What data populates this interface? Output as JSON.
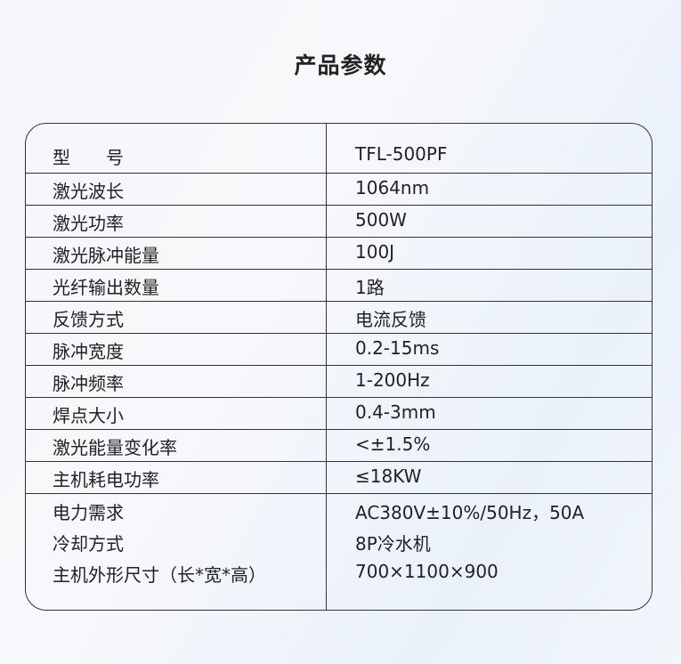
{
  "title": "产品参数",
  "rows": [
    {
      "label": "型　　号",
      "value": "TFL-500PF"
    },
    {
      "label": "激光波长",
      "value": "1064nm"
    },
    {
      "label": "激光功率",
      "value": "500W"
    },
    {
      "label": "激光脉冲能量",
      "value": "100J"
    },
    {
      "label": "光纤输出数量",
      "value": "1路"
    },
    {
      "label": "反馈方式",
      "value": "电流反馈"
    },
    {
      "label": "脉冲宽度",
      "value": "0.2-15ms"
    },
    {
      "label": "脉冲频率",
      "value": "1-200Hz"
    },
    {
      "label": "焊点大小",
      "value": "0.4-3mm"
    },
    {
      "label": "激光能量变化率",
      "value": "<±1.5%"
    },
    {
      "label": "主机耗电功率",
      "value": "≤18KW"
    }
  ],
  "tail_rows": [
    {
      "label": "电力需求",
      "value": "AC380V±10%/50Hz，50A"
    },
    {
      "label": "冷却方式",
      "value": "8P冷水机"
    },
    {
      "label": "主机外形尺寸（长*宽*高）",
      "value": "700×1100×900"
    }
  ]
}
